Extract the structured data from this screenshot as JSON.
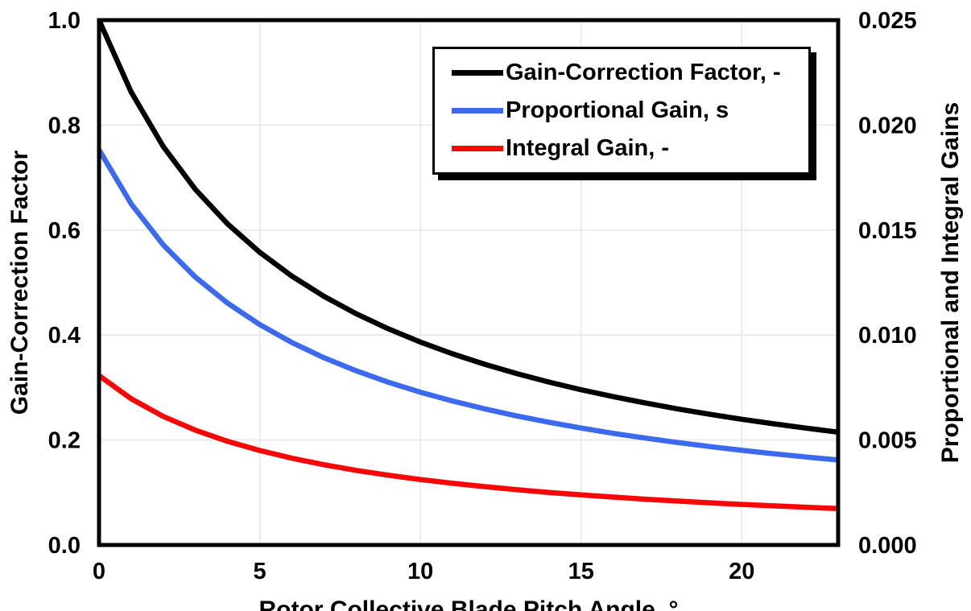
{
  "chart_data": {
    "type": "line",
    "title": "",
    "xlabel": "Rotor Collective Blade Pitch Angle, °",
    "ylabel_left": "Gain-Correction Factor",
    "ylabel_right": "Proportional and Integral Gains",
    "xlim": [
      0,
      23
    ],
    "ylim_left": [
      0,
      1.0
    ],
    "ylim_right": [
      0,
      0.025
    ],
    "xticks": [
      "0",
      "5",
      "10",
      "15",
      "20"
    ],
    "yticks_left": [
      "0.0",
      "0.2",
      "0.4",
      "0.6",
      "0.8",
      "1.0"
    ],
    "yticks_right": [
      "0.000",
      "0.005",
      "0.010",
      "0.015",
      "0.020",
      "0.025"
    ],
    "grid": true,
    "gridline_color": "#e8e8e8",
    "legend_position": "top-right-inside",
    "x": [
      0,
      1,
      2,
      3,
      4,
      5,
      6,
      7,
      8,
      9,
      10,
      11,
      12,
      13,
      14,
      15,
      16,
      17,
      18,
      19,
      20,
      21,
      22,
      23
    ],
    "series": [
      {
        "name": "Gain-Correction Factor, -",
        "axis": "left",
        "color": "#000000",
        "values": [
          1.0,
          0.8631,
          0.7591,
          0.6775,
          0.6117,
          0.5576,
          0.5123,
          0.4738,
          0.4407,
          0.4119,
          0.3866,
          0.3642,
          0.3443,
          0.3265,
          0.3104,
          0.2959,
          0.2826,
          0.2705,
          0.2593,
          0.2491,
          0.2396,
          0.2308,
          0.2227,
          0.2151
        ]
      },
      {
        "name": "Proportional Gain, s",
        "axis": "right",
        "color": "#3B6AEE",
        "values": [
          0.018827,
          0.016249,
          0.014291,
          0.012755,
          0.011517,
          0.010498,
          0.009645,
          0.00892,
          0.008296,
          0.007754,
          0.007278,
          0.006858,
          0.006483,
          0.006147,
          0.005844,
          0.00557,
          0.00532,
          0.005092,
          0.004882,
          0.004689,
          0.004511,
          0.004346,
          0.004192,
          0.004049
        ]
      },
      {
        "name": "Integral Gain, -",
        "axis": "right",
        "color": "#F90606",
        "values": [
          0.008069,
          0.006964,
          0.006125,
          0.005467,
          0.004936,
          0.0045,
          0.004133,
          0.003823,
          0.003555,
          0.003323,
          0.003119,
          0.002939,
          0.002778,
          0.002634,
          0.002505,
          0.002387,
          0.00228,
          0.002182,
          0.002092,
          0.00201,
          0.001933,
          0.001862,
          0.001797,
          0.001735
        ]
      }
    ]
  }
}
